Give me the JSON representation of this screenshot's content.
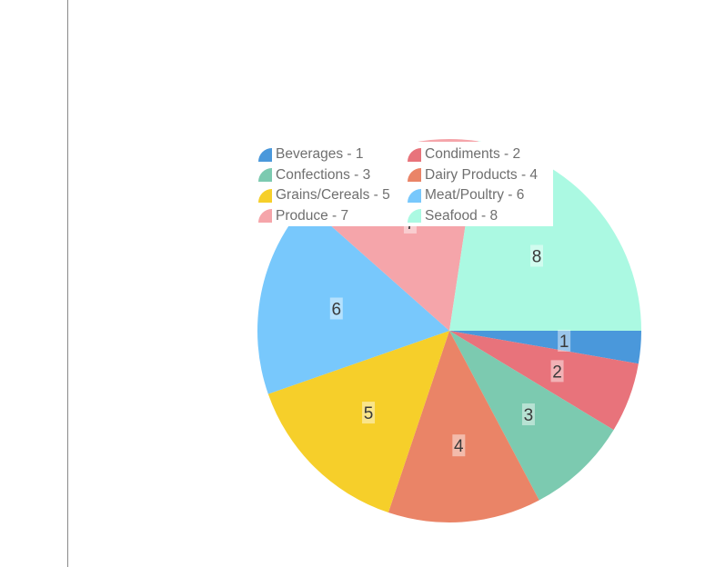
{
  "chart_data": {
    "type": "pie",
    "start_angle_deg": 0,
    "direction": "clockwise",
    "legend_placement": "top-left",
    "slices": [
      {
        "category": "Beverages",
        "legend": "Beverages - 1",
        "label": "1",
        "value": 2.75,
        "color": "#4a98db"
      },
      {
        "category": "Condiments",
        "legend": "Condiments - 2",
        "label": "2",
        "value": 5.9,
        "color": "#e8737b"
      },
      {
        "category": "Confections",
        "legend": "Confections - 3",
        "label": "3",
        "value": 8.6,
        "color": "#7ccab0"
      },
      {
        "category": "Dairy Products",
        "legend": "Dairy Products - 4",
        "label": "4",
        "value": 12.9,
        "color": "#ea8467"
      },
      {
        "category": "Grains/Cereals",
        "legend": "Grains/Cereals - 5",
        "label": "5",
        "value": 14.5,
        "color": "#f6cf2a"
      },
      {
        "category": "Meat/Poultry",
        "legend": "Meat/Poultry - 6",
        "label": "6",
        "value": 16.9,
        "color": "#78c8fc"
      },
      {
        "category": "Produce",
        "legend": "Produce - 7",
        "label": "7",
        "value": 15.85,
        "color": "#f5a5aa"
      },
      {
        "category": "Seafood",
        "legend": "Seafood - 8",
        "label": "8",
        "value": 22.6,
        "color": "#abf9e2"
      }
    ]
  }
}
